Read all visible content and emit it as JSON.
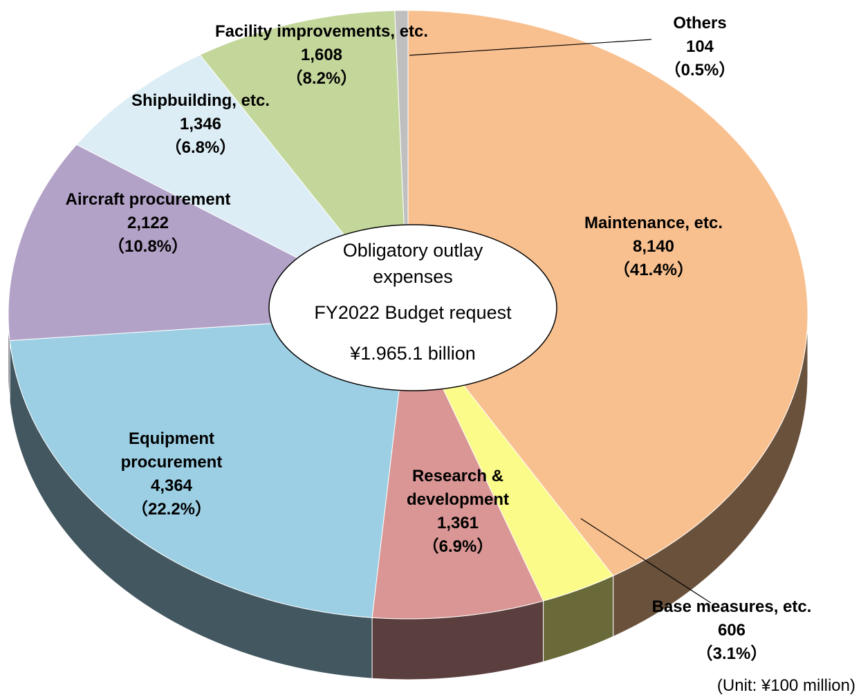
{
  "chart_data": {
    "type": "pie",
    "categories": [
      "Maintenance, etc.",
      "Base measures, etc.",
      "Research & development",
      "Equipment procurement",
      "Aircraft procurement",
      "Shipbuilding, etc.",
      "Facility improvements, etc.",
      "Others"
    ],
    "values": [
      8140,
      606,
      1361,
      4364,
      2122,
      1346,
      1608,
      104
    ],
    "value_labels": [
      "8,140",
      "606",
      "1,361",
      "4,364",
      "2,122",
      "1,346",
      "1,608",
      "104"
    ],
    "percents": [
      41.4,
      3.1,
      6.9,
      22.2,
      10.8,
      6.8,
      8.2,
      0.5
    ],
    "percent_labels": [
      "（41.4%）",
      "（3.1%）",
      "（6.9%）",
      "（22.2%）",
      "（10.8%）",
      "（6.8%）",
      "（8.2%）",
      "（0.5%）"
    ],
    "colors": [
      "#f9c08f",
      "#fbfb8a",
      "#d99694",
      "#9ccfe4",
      "#b3a2c7",
      "#dcedf5",
      "#c4d79b",
      "#bfbfbf"
    ],
    "center_label": [
      "Obligatory outlay expenses",
      "FY2022 Budget request",
      "¥1.965.1 billion"
    ],
    "unit_note": "(Unit: ¥100 million)"
  }
}
